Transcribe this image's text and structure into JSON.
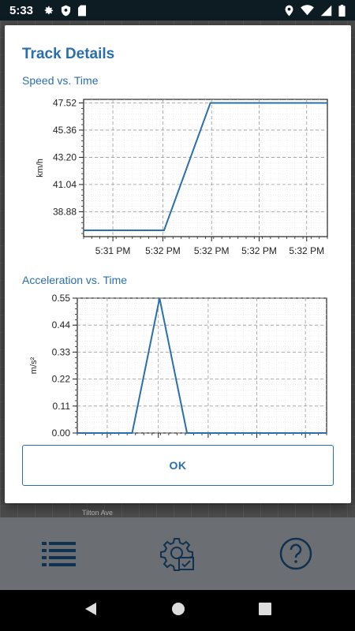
{
  "status_bar": {
    "time": "5:33"
  },
  "map": {
    "street_label": "Tilton Ave"
  },
  "dialog": {
    "title": "Track Details",
    "ok_label": "OK"
  },
  "charts": {
    "speed_title": "Speed vs. Time",
    "accel_title": "Acceleration vs. Time"
  },
  "chart_data": [
    {
      "type": "line",
      "title": "Speed vs. Time",
      "xlabel": "",
      "ylabel": "km/h",
      "x": [
        0,
        0.33,
        0.52,
        1.0
      ],
      "x_ticks": [
        {
          "pos": 0.12,
          "label": "5:31 PM"
        },
        {
          "pos": 0.325,
          "label": "5:32 PM"
        },
        {
          "pos": 0.525,
          "label": "5:32 PM"
        },
        {
          "pos": 0.72,
          "label": "5:32 PM"
        },
        {
          "pos": 0.915,
          "label": "5:32 PM"
        }
      ],
      "series": [
        {
          "values": [
            37.4,
            37.4,
            47.52,
            47.52
          ]
        }
      ],
      "ylim": [
        36.9,
        47.8
      ],
      "yticks": [
        38.88,
        41.04,
        43.2,
        45.36,
        47.52
      ],
      "ytick_labels": [
        "38.88",
        "41.04",
        "43.20",
        "45.36",
        "47.52"
      ],
      "grid": true,
      "color": "#2a6fab"
    },
    {
      "type": "line",
      "title": "Acceleration vs. Time",
      "xlabel": "",
      "ylabel": "m/s²",
      "x": [
        0,
        0.22,
        0.33,
        0.44,
        1.0
      ],
      "series": [
        {
          "values": [
            0.0,
            0.0,
            0.55,
            0.0,
            0.0
          ]
        }
      ],
      "ylim": [
        0,
        0.55
      ],
      "yticks": [
        0.0,
        0.11,
        0.22,
        0.33,
        0.44,
        0.55
      ],
      "ytick_labels": [
        "0.00",
        "0.11",
        "0.22",
        "0.33",
        "0.44",
        "0.55"
      ],
      "grid": true,
      "color": "#2a6fab"
    }
  ]
}
